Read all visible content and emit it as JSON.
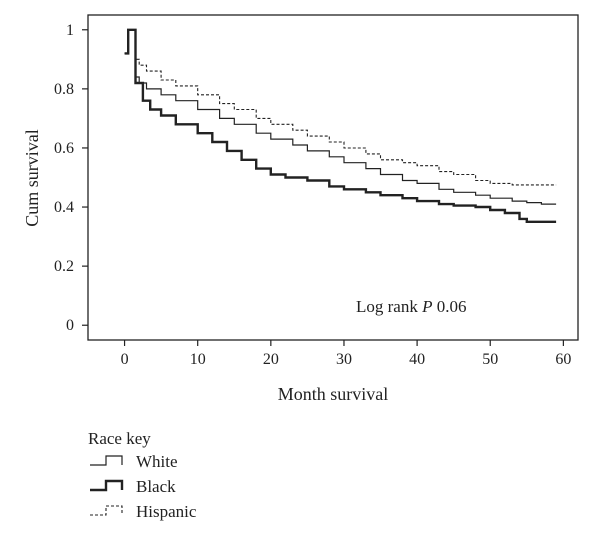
{
  "chart_data": {
    "type": "line",
    "step": true,
    "xlabel": "Month survival",
    "ylabel": "Cum survival",
    "xlim": [
      -5,
      62
    ],
    "ylim": [
      -0.05,
      1.05
    ],
    "xticks": [
      0,
      10,
      20,
      30,
      40,
      50,
      60
    ],
    "yticks": [
      0,
      0.2,
      0.4,
      0.6,
      0.8,
      1
    ],
    "ytick_labels": [
      "0",
      "0.2",
      "0.4",
      "0.6",
      "0.8",
      "1"
    ],
    "annotation": {
      "prefix": "Log rank ",
      "italic": "P",
      "suffix": " 0.06"
    },
    "legend": {
      "title": "Race key",
      "placement": "below-left"
    },
    "series": [
      {
        "name": "White",
        "style": "thin-solid",
        "x": [
          0,
          0.5,
          1.5,
          2,
          3,
          5,
          7,
          10,
          13,
          15,
          18,
          20,
          23,
          25,
          28,
          30,
          33,
          35,
          38,
          40,
          43,
          45,
          48,
          50,
          53,
          55,
          57,
          59
        ],
        "y": [
          0.92,
          1.0,
          0.84,
          0.82,
          0.8,
          0.78,
          0.76,
          0.73,
          0.7,
          0.68,
          0.65,
          0.63,
          0.61,
          0.59,
          0.57,
          0.55,
          0.53,
          0.51,
          0.49,
          0.48,
          0.46,
          0.45,
          0.44,
          0.43,
          0.42,
          0.415,
          0.41,
          0.41
        ]
      },
      {
        "name": "Black",
        "style": "thick-solid",
        "x": [
          0,
          0.5,
          1.5,
          2.5,
          3.5,
          5,
          7,
          10,
          12,
          14,
          16,
          18,
          20,
          22,
          25,
          28,
          30,
          33,
          35,
          38,
          40,
          43,
          45,
          48,
          50,
          52,
          54,
          55,
          59
        ],
        "y": [
          0.92,
          1.0,
          0.82,
          0.76,
          0.73,
          0.71,
          0.68,
          0.65,
          0.62,
          0.59,
          0.56,
          0.53,
          0.51,
          0.5,
          0.49,
          0.47,
          0.46,
          0.45,
          0.44,
          0.43,
          0.42,
          0.41,
          0.405,
          0.4,
          0.39,
          0.38,
          0.36,
          0.35,
          0.35
        ]
      },
      {
        "name": "Hispanic",
        "style": "thin-dashed",
        "x": [
          0,
          0.5,
          1.5,
          2,
          3,
          5,
          7,
          10,
          13,
          15,
          18,
          20,
          23,
          25,
          28,
          30,
          33,
          35,
          38,
          40,
          43,
          45,
          48,
          50,
          53,
          55,
          57,
          59
        ],
        "y": [
          0.92,
          1.0,
          0.9,
          0.88,
          0.86,
          0.83,
          0.81,
          0.78,
          0.75,
          0.73,
          0.7,
          0.68,
          0.66,
          0.64,
          0.62,
          0.6,
          0.58,
          0.56,
          0.55,
          0.54,
          0.52,
          0.51,
          0.49,
          0.48,
          0.475,
          0.475,
          0.475,
          0.475
        ]
      }
    ]
  }
}
